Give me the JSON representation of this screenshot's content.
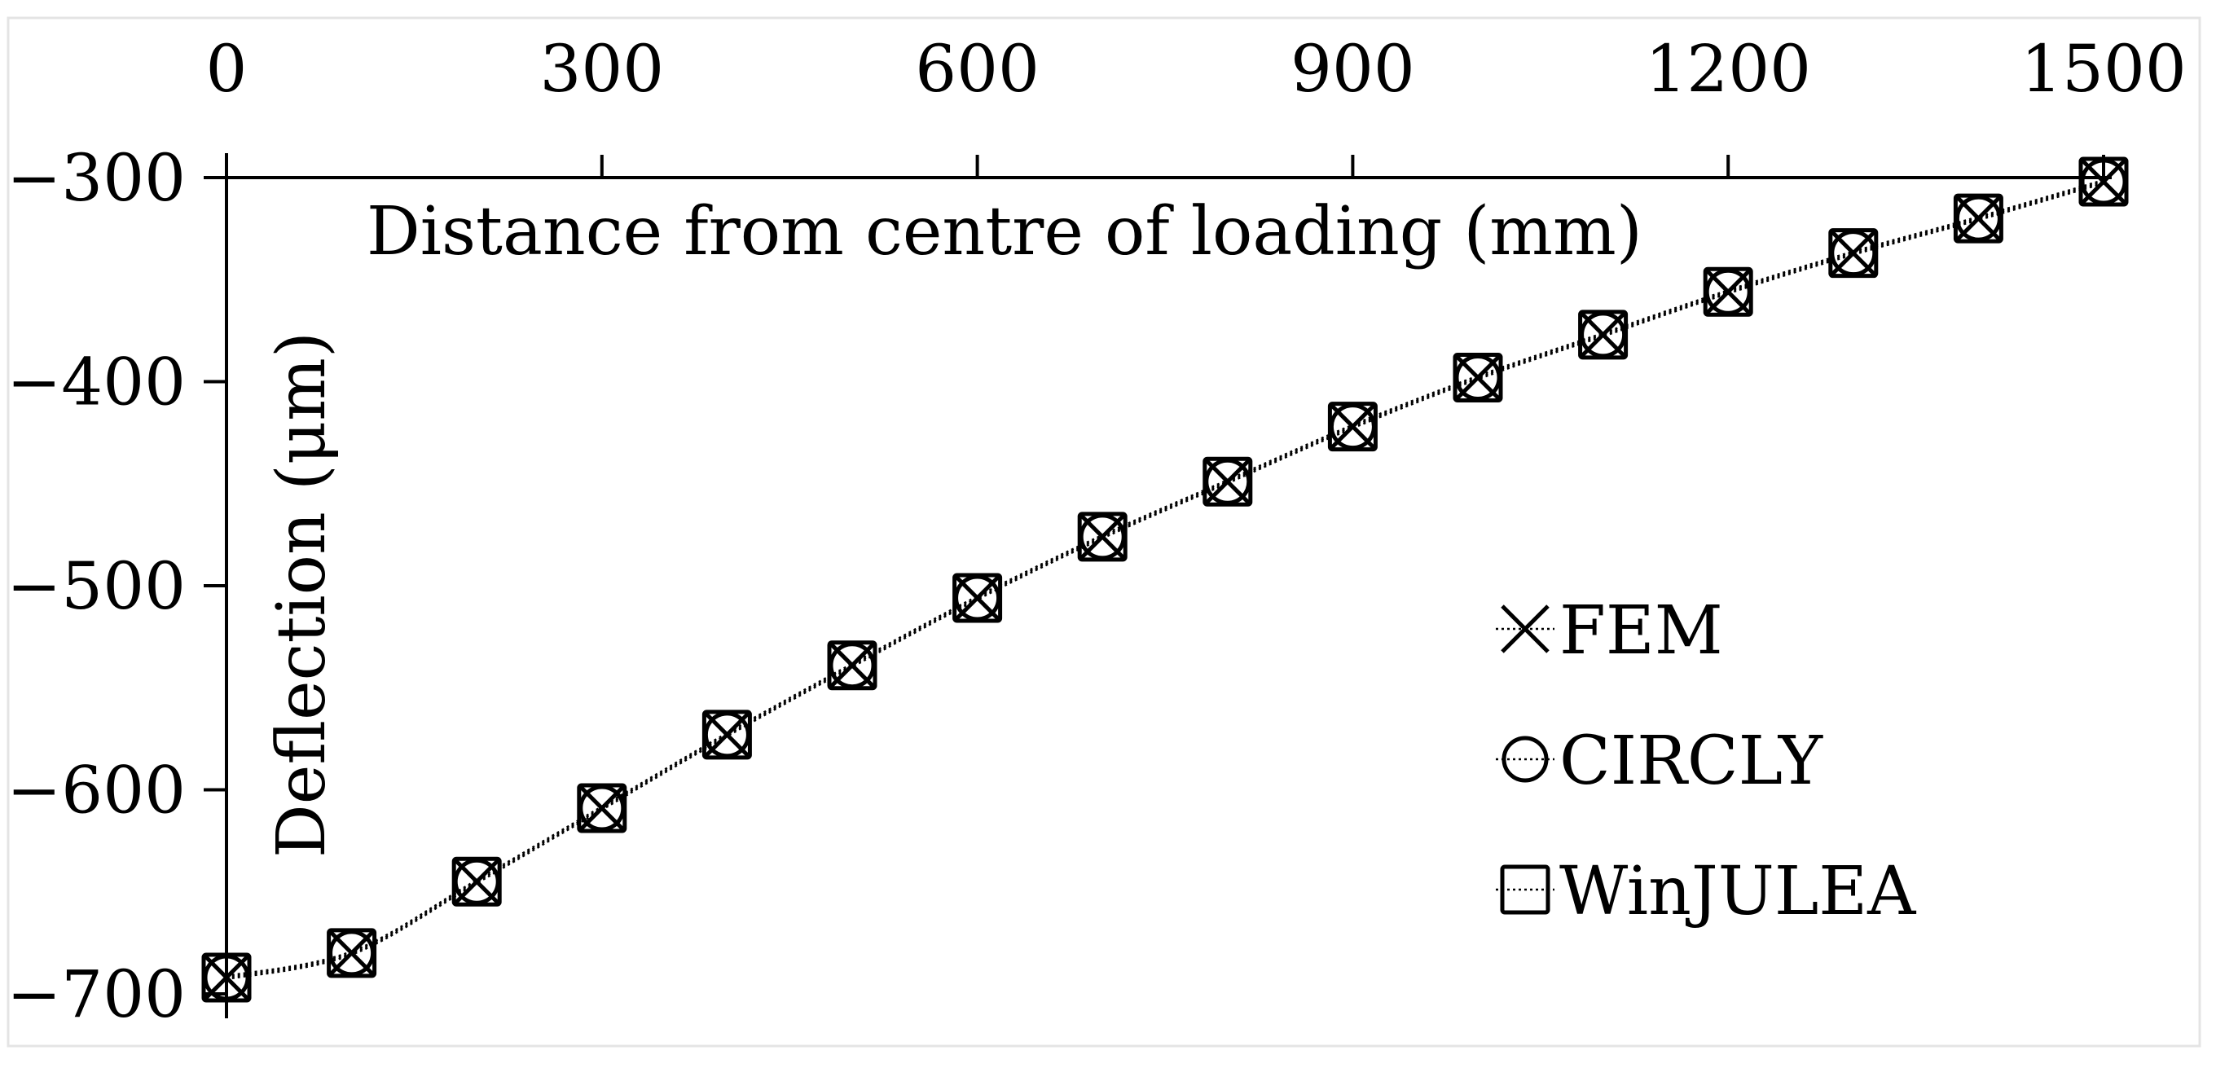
{
  "chart_data": {
    "type": "scatter",
    "xlabel": "Distance from centre of loading (mm)",
    "ylabel": "Deflection (μm)",
    "xlim": [
      0,
      1500
    ],
    "ylim": [
      -700,
      -300
    ],
    "x_ticks": [
      "0",
      "300",
      "600",
      "900",
      "1200",
      "1500"
    ],
    "y_ticks": [
      "−300",
      "−400",
      "−500",
      "−600",
      "−700"
    ],
    "x_axis_position": "top",
    "grid": false,
    "legend_position": "lower-right",
    "series": [
      {
        "name": "FEM",
        "marker": "cross",
        "line": "dotted",
        "color": "#000000",
        "x": [
          0,
          100,
          200,
          300,
          400,
          500,
          600,
          700,
          800,
          900,
          1000,
          1100,
          1200,
          1300,
          1400,
          1500
        ],
        "y": [
          -692,
          -680,
          -645,
          -609,
          -573,
          -539,
          -506,
          -476,
          -449,
          -422,
          -398,
          -377,
          -356,
          -337,
          -320,
          -302
        ]
      },
      {
        "name": "CIRCLY",
        "marker": "circle",
        "line": "dotted",
        "color": "#000000",
        "x": [
          0,
          100,
          200,
          300,
          400,
          500,
          600,
          700,
          800,
          900,
          1000,
          1100,
          1200,
          1300,
          1400,
          1500
        ],
        "y": [
          -692,
          -680,
          -645,
          -609,
          -573,
          -539,
          -506,
          -476,
          -449,
          -422,
          -398,
          -377,
          -356,
          -337,
          -320,
          -302
        ]
      },
      {
        "name": "WinJULEA",
        "marker": "square",
        "line": "dotted",
        "color": "#000000",
        "x": [
          0,
          100,
          200,
          300,
          400,
          500,
          600,
          700,
          800,
          900,
          1000,
          1100,
          1200,
          1300,
          1400,
          1500
        ],
        "y": [
          -692,
          -680,
          -645,
          -609,
          -573,
          -539,
          -506,
          -476,
          -449,
          -422,
          -398,
          -377,
          -356,
          -337,
          -320,
          -302
        ]
      }
    ]
  }
}
